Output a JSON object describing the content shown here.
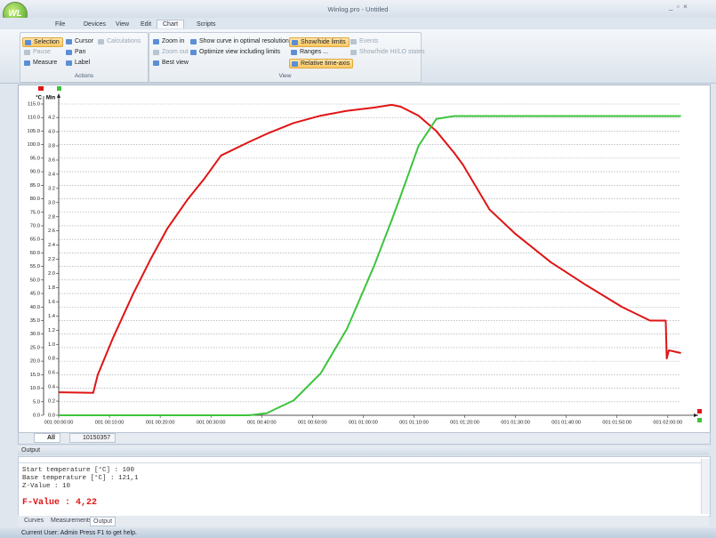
{
  "window": {
    "title": "Winlog.pro - Untitled"
  },
  "menu": [
    "File",
    "Devices",
    "View",
    "Edit",
    "Chart",
    "Scripts"
  ],
  "ribbon": {
    "actions": [
      "Selection",
      "Cursor",
      "Calculations",
      "Pause",
      "Pan",
      "Measure",
      "Label"
    ],
    "actions_group": "Actions",
    "view": [
      "Zoom in",
      "Show curve in optimal resolution",
      "Zoom out",
      "Optimize view including limits",
      "Best view",
      "Show/hide limits",
      "Events",
      "Ranges ...",
      "Show/hide HI/LO states",
      "Relative time-axis"
    ],
    "view_group": "View"
  },
  "chart_data": {
    "type": "line",
    "y_label": "°C",
    "y2_label": "Min",
    "x": [
      0,
      6.8,
      7.7,
      10.7,
      14.7,
      18.2,
      21.4,
      25.3,
      28.8,
      32,
      37.5,
      41,
      46.3,
      51.6,
      56.8,
      62.1,
      65.6,
      67.4,
      70.9,
      74.4,
      77.9,
      79.6,
      84.9,
      90,
      97,
      104,
      111,
      116.5,
      119.6,
      119.8,
      120.2,
      122.6
    ],
    "series": [
      {
        "color": "#e01414",
        "values": [
          8.5,
          8.3,
          15,
          28.6,
          45,
          58,
          69,
          79.5,
          87.7,
          96,
          101,
          104,
          108,
          110.7,
          112.5,
          113.7,
          114.7,
          114,
          110.7,
          105,
          97,
          92.7,
          76,
          67,
          56.5,
          48,
          40,
          35,
          35,
          21,
          24,
          23
        ]
      },
      {
        "color": "#3cc43c",
        "axis": "y2",
        "values": [
          0,
          0,
          0,
          0,
          0,
          0,
          0,
          0,
          0,
          0,
          0,
          0.03,
          0.21,
          0.59,
          1.22,
          2.1,
          2.75,
          3.1,
          3.8,
          4.18,
          4.22,
          4.22,
          4.22,
          4.22,
          4.22,
          4.22,
          4.22,
          4.22,
          4.22,
          4.22,
          4.22,
          4.22
        ]
      }
    ],
    "xlim": [
      0,
      126
    ],
    "xticks": [
      {
        "value": 0,
        "label": "001 00:00:00"
      },
      {
        "value": 10,
        "label": "001 00:10:00"
      },
      {
        "value": 20,
        "label": "001 00:20:00"
      },
      {
        "value": 30,
        "label": "001 00:30:00"
      },
      {
        "value": 40,
        "label": "001 00:40:00"
      },
      {
        "value": 50,
        "label": "001 00:50:00"
      },
      {
        "value": 60,
        "label": "001 01:00:00"
      },
      {
        "value": 70,
        "label": "001 01:10:00"
      },
      {
        "value": 80,
        "label": "001 01:20:00"
      },
      {
        "value": 90,
        "label": "001 01:30:00"
      },
      {
        "value": 100,
        "label": "001 01:40:00"
      },
      {
        "value": 110,
        "label": "001 01:50:00"
      },
      {
        "value": 120,
        "label": "001 02:00:00"
      }
    ],
    "ylim": [
      0,
      115
    ],
    "yticks": [
      {
        "value": 0,
        "label": "0.0"
      },
      {
        "value": 5,
        "label": "5.0"
      },
      {
        "value": 10,
        "label": "10.0"
      },
      {
        "value": 15,
        "label": "15.0"
      },
      {
        "value": 20,
        "label": "20.0"
      },
      {
        "value": 25,
        "label": "25.0"
      },
      {
        "value": 30,
        "label": "30.0"
      },
      {
        "value": 35,
        "label": "35.0"
      },
      {
        "value": 40,
        "label": "40.0"
      },
      {
        "value": 45,
        "label": "45.0"
      },
      {
        "value": 50,
        "label": "50.0"
      },
      {
        "value": 55,
        "label": "55.0"
      },
      {
        "value": 60,
        "label": "60.0"
      },
      {
        "value": 65,
        "label": "65.0"
      },
      {
        "value": 70,
        "label": "70.0"
      },
      {
        "value": 75,
        "label": "75.0"
      },
      {
        "value": 80,
        "label": "80.0"
      },
      {
        "value": 85,
        "label": "85.0"
      },
      {
        "value": 90,
        "label": "90.0"
      },
      {
        "value": 95,
        "label": "95.0"
      },
      {
        "value": 100,
        "label": "100.0"
      },
      {
        "value": 105,
        "label": "105.0"
      },
      {
        "value": 110,
        "label": "110.0"
      },
      {
        "value": 115,
        "label": "115.0"
      }
    ],
    "y2lim": [
      0,
      4.39
    ],
    "y2ticks": [
      {
        "value": 0,
        "label": "0.0"
      },
      {
        "value": 0.2,
        "label": "0.2"
      },
      {
        "value": 0.4,
        "label": "0.4"
      },
      {
        "value": 0.6,
        "label": "0.6"
      },
      {
        "value": 0.8,
        "label": "0.8"
      },
      {
        "value": 1,
        "label": "1.0"
      },
      {
        "value": 1.2,
        "label": "1.2"
      },
      {
        "value": 1.4,
        "label": "1.4"
      },
      {
        "value": 1.6,
        "label": "1.6"
      },
      {
        "value": 1.8,
        "label": "1.8"
      },
      {
        "value": 2,
        "label": "2.0"
      },
      {
        "value": 2.2,
        "label": "2.2"
      },
      {
        "value": 2.4,
        "label": "2.4"
      },
      {
        "value": 2.6,
        "label": "2.6"
      },
      {
        "value": 2.8,
        "label": "2.8"
      },
      {
        "value": 3,
        "label": "3.0"
      },
      {
        "value": 3.2,
        "label": "3.2"
      },
      {
        "value": 3.4,
        "label": "3.4"
      },
      {
        "value": 3.6,
        "label": "3.6"
      },
      {
        "value": 3.8,
        "label": "3.8"
      },
      {
        "value": 4,
        "label": "4.0"
      },
      {
        "value": 4.2,
        "label": "4.2"
      }
    ],
    "grid": true
  },
  "chart_tabs": [
    "All",
    "10150357"
  ],
  "output": {
    "title": "Output",
    "lines": [
      "Start temperature [°C] : 100",
      "Base temperature [°C] : 121,1",
      "Z-Value : 10"
    ],
    "result": "F-Value : 4,22"
  },
  "bottom_tabs": [
    "Curves",
    "Measurements",
    "Output"
  ],
  "status": "Current User: Admin Press F1 to get help."
}
